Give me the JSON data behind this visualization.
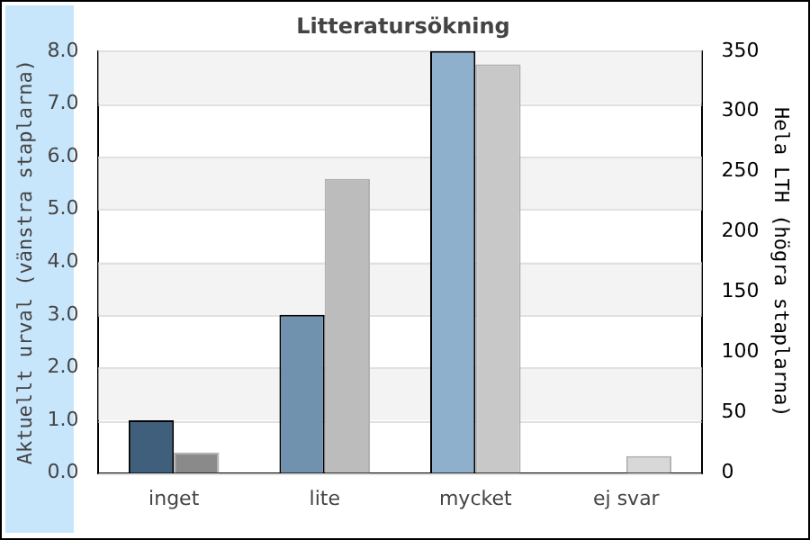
{
  "chart_data": {
    "type": "bar",
    "title": "Litteratursökning",
    "ylabel": "Aktuellt urval (vänstra staplarna)",
    "y2label": "Hela LTH (högra staplarna)",
    "categories": [
      "inget",
      "lite",
      "mycket",
      "ej svar"
    ],
    "series": [
      {
        "colors": [
          "#3f5f7c",
          "#7192ae",
          "#8fb0cc",
          "#b0cde3"
        ],
        "values": [
          1,
          3,
          8,
          0
        ]
      },
      {
        "colors": [
          "#8a8a8a",
          "#bcbcbc",
          "#c8c8c8",
          "#d8d8d8"
        ],
        "values": [
          17,
          244,
          339,
          14
        ],
        "axis": "y2"
      }
    ],
    "ylim": [
      0,
      8
    ],
    "yticks": [
      {
        "value": 0,
        "label": "0.0"
      },
      {
        "value": 1,
        "label": "1.0"
      },
      {
        "value": 2,
        "label": "2.0"
      },
      {
        "value": 3,
        "label": "3.0"
      },
      {
        "value": 4,
        "label": "4.0"
      },
      {
        "value": 5,
        "label": "5.0"
      },
      {
        "value": 6,
        "label": "6.0"
      },
      {
        "value": 7,
        "label": "7.0"
      },
      {
        "value": 8,
        "label": "8.0"
      }
    ],
    "y2lim": [
      0,
      350
    ],
    "y2ticks": [
      0,
      50,
      100,
      150,
      200,
      250,
      300,
      350
    ],
    "grid": "y",
    "legend": false
  }
}
